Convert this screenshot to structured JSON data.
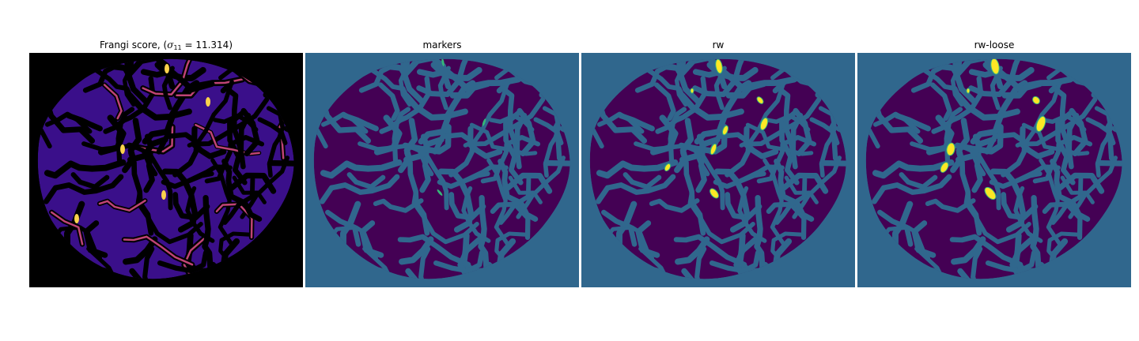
{
  "panels": [
    {
      "title_prefix": "Frangi score, (",
      "title_symbol": "σ",
      "title_subscript": "11",
      "title_suffix": " = 11.314)",
      "kind": "frangi"
    },
    {
      "title": "markers",
      "kind": "markers"
    },
    {
      "title": "rw",
      "kind": "rw"
    },
    {
      "title": "rw-loose",
      "kind": "rw-loose"
    }
  ],
  "colors": {
    "frangi_background": "#000000",
    "frangi_tissue": "#3a0f8a",
    "frangi_highlight": "#e0508a",
    "frangi_peak": "#fbd24c",
    "label_background": "#30678d",
    "label_tissue": "#440154",
    "label_marker": "#35b779",
    "label_vessel": "#fde725"
  }
}
